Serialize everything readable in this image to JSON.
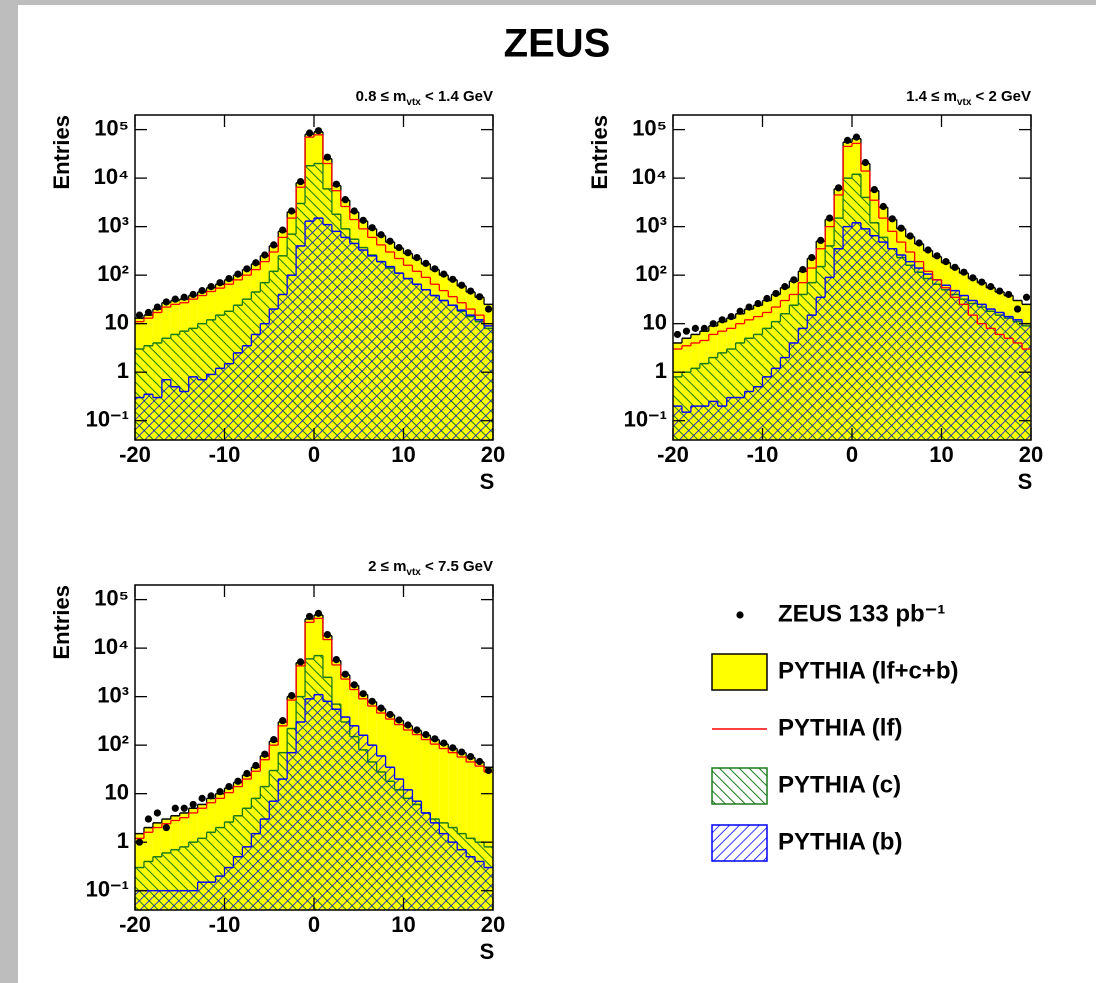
{
  "title": "ZEUS",
  "chart_data": [
    {
      "type": "histogram",
      "title": {
        "main": "0.8 ≤ m",
        "sub": "vtx",
        "rest": " < 1.4 GeV"
      },
      "xlabel": "S",
      "ylabel": "Entries",
      "log_y": true,
      "xlim": [
        -20,
        20
      ],
      "xticks": [
        -20,
        -10,
        0,
        10,
        20
      ],
      "ylim": [
        0.04,
        200000
      ],
      "yticks": [
        {
          "value": 0.1,
          "label": "10⁻¹"
        },
        1,
        10,
        {
          "value": 100,
          "label": "10²"
        },
        {
          "value": 1000,
          "label": "10³"
        },
        {
          "value": 10000,
          "label": "10⁴"
        },
        {
          "value": 100000,
          "label": "10⁵"
        }
      ],
      "bins": [
        -20,
        -19,
        -18,
        -17,
        -16,
        -15,
        -14,
        -13,
        -12,
        -11,
        -10,
        -9,
        -8,
        -7,
        -6,
        -5,
        -4,
        -3,
        -2,
        -1,
        0,
        1,
        2,
        3,
        4,
        5,
        6,
        7,
        8,
        9,
        10,
        11,
        12,
        13,
        14,
        15,
        16,
        17,
        18,
        19,
        20
      ],
      "series": [
        {
          "name": "ZEUS 133 pb⁻¹",
          "style": "points",
          "color": "#000000",
          "values": [
            15,
            17,
            22,
            28,
            32,
            35,
            40,
            48,
            58,
            70,
            85,
            105,
            135,
            180,
            260,
            420,
            850,
            2100,
            8500,
            85000,
            95000,
            27000,
            7500,
            3600,
            2100,
            1350,
            950,
            680,
            500,
            370,
            290,
            230,
            175,
            135,
            105,
            82,
            62,
            47,
            36,
            20
          ]
        },
        {
          "name": "PYTHIA (lf+c+b)",
          "style": "filled",
          "color": "#ffff00",
          "values": [
            13,
            15,
            20,
            27,
            30,
            32,
            38,
            45,
            55,
            65,
            80,
            100,
            130,
            170,
            250,
            400,
            800,
            2000,
            8000,
            80000,
            90000,
            25000,
            7000,
            3500,
            2000,
            1300,
            900,
            650,
            480,
            360,
            280,
            220,
            170,
            130,
            100,
            80,
            60,
            45,
            35,
            25
          ]
        },
        {
          "name": "PYTHIA (lf)",
          "style": "line",
          "color": "#ff0000",
          "values": [
            11,
            13,
            17,
            22,
            25,
            27,
            32,
            38,
            46,
            54,
            65,
            80,
            100,
            130,
            190,
            300,
            600,
            1500,
            6500,
            70000,
            78000,
            20000,
            5500,
            2600,
            1400,
            900,
            600,
            420,
            300,
            220,
            160,
            120,
            90,
            65,
            48,
            36,
            27,
            20,
            15,
            10
          ]
        },
        {
          "name": "PYTHIA (c)",
          "style": "hatch-down",
          "color": "#1a7a1a",
          "values": [
            3,
            3.5,
            4,
            5,
            6,
            7,
            8,
            10,
            12,
            15,
            18,
            24,
            32,
            45,
            70,
            120,
            250,
            700,
            3000,
            18000,
            20000,
            6000,
            1800,
            900,
            550,
            370,
            260,
            190,
            140,
            110,
            85,
            65,
            50,
            38,
            30,
            24,
            18,
            14,
            11,
            8
          ]
        },
        {
          "name": "PYTHIA (b)",
          "style": "hatch-up",
          "color": "#0000ff",
          "values": [
            0.3,
            0.35,
            0.3,
            0.7,
            0.5,
            0.4,
            0.8,
            0.7,
            0.9,
            1.2,
            1.5,
            2.5,
            3.5,
            6,
            10,
            20,
            40,
            100,
            400,
            1300,
            1500,
            1100,
            800,
            600,
            450,
            330,
            250,
            190,
            150,
            110,
            85,
            65,
            50,
            38,
            30,
            24,
            19,
            15,
            12,
            9
          ]
        }
      ]
    },
    {
      "type": "histogram",
      "title": {
        "main": "1.4 ≤ m",
        "sub": "vtx",
        "rest": " < 2 GeV"
      },
      "xlabel": "S",
      "ylabel": "Entries",
      "log_y": true,
      "xlim": [
        -20,
        20
      ],
      "xticks": [
        -20,
        -10,
        0,
        10,
        20
      ],
      "ylim": [
        0.04,
        200000
      ],
      "yticks": [
        {
          "value": 0.1,
          "label": "10⁻¹"
        },
        1,
        10,
        {
          "value": 100,
          "label": "10²"
        },
        {
          "value": 1000,
          "label": "10³"
        },
        {
          "value": 10000,
          "label": "10⁴"
        },
        {
          "value": 100000,
          "label": "10⁵"
        }
      ],
      "bins": [
        -20,
        -19,
        -18,
        -17,
        -16,
        -15,
        -14,
        -13,
        -12,
        -11,
        -10,
        -9,
        -8,
        -7,
        -6,
        -5,
        -4,
        -3,
        -2,
        -1,
        0,
        1,
        2,
        3,
        4,
        5,
        6,
        7,
        8,
        9,
        10,
        11,
        12,
        13,
        14,
        15,
        16,
        17,
        18,
        19,
        20
      ],
      "series": [
        {
          "name": "ZEUS 133 pb⁻¹",
          "style": "points",
          "color": "#000000",
          "values": [
            6,
            7,
            8,
            8,
            10,
            12,
            14,
            18,
            22,
            26,
            33,
            42,
            58,
            80,
            130,
            230,
            520,
            1500,
            6300,
            60000,
            70000,
            21000,
            5800,
            2600,
            1450,
            930,
            640,
            460,
            330,
            250,
            190,
            145,
            115,
            88,
            72,
            58,
            47,
            40,
            20,
            35
          ]
        },
        {
          "name": "PYTHIA (lf+c+b)",
          "style": "filled",
          "color": "#ffff00",
          "values": [
            4,
            5,
            6,
            7,
            9,
            11,
            13,
            16,
            20,
            24,
            30,
            40,
            55,
            75,
            120,
            220,
            500,
            1400,
            6000,
            55000,
            65000,
            20000,
            5500,
            2500,
            1400,
            900,
            620,
            440,
            320,
            240,
            180,
            140,
            110,
            85,
            70,
            55,
            45,
            38,
            30,
            25
          ]
        },
        {
          "name": "PYTHIA (lf)",
          "style": "line",
          "color": "#ff0000",
          "values": [
            3,
            3.5,
            4,
            4.5,
            6,
            7,
            8,
            10,
            12,
            14,
            17,
            22,
            30,
            40,
            70,
            140,
            350,
            1000,
            4500,
            45000,
            52000,
            14000,
            3500,
            1500,
            800,
            480,
            300,
            190,
            120,
            80,
            55,
            35,
            25,
            15,
            10,
            8,
            6,
            5,
            4,
            3
          ]
        },
        {
          "name": "PYTHIA (c)",
          "style": "hatch-down",
          "color": "#1a7a1a",
          "values": [
            0.8,
            1,
            1.2,
            1.5,
            2,
            2.5,
            3,
            4,
            5,
            6,
            8,
            11,
            16,
            24,
            40,
            70,
            150,
            400,
            1500,
            10000,
            12000,
            4000,
            1200,
            600,
            350,
            230,
            160,
            115,
            85,
            65,
            50,
            40,
            32,
            26,
            22,
            18,
            15,
            13,
            11,
            9
          ]
        },
        {
          "name": "PYTHIA (b)",
          "style": "hatch-up",
          "color": "#0000ff",
          "values": [
            0.2,
            0.15,
            0.2,
            0.2,
            0.25,
            0.2,
            0.3,
            0.3,
            0.4,
            0.5,
            0.8,
            1.2,
            2,
            4,
            8,
            15,
            35,
            90,
            350,
            1000,
            1200,
            900,
            650,
            480,
            350,
            260,
            190,
            140,
            105,
            80,
            62,
            48,
            38,
            30,
            25,
            20,
            17,
            14,
            12,
            10
          ]
        }
      ]
    },
    {
      "type": "histogram",
      "title": {
        "main": "2 ≤ m",
        "sub": "vtx",
        "rest": " < 7.5 GeV"
      },
      "xlabel": "S",
      "ylabel": "Entries",
      "log_y": true,
      "xlim": [
        -20,
        20
      ],
      "xticks": [
        -20,
        -10,
        0,
        10,
        20
      ],
      "ylim": [
        0.04,
        200000
      ],
      "yticks": [
        {
          "value": 0.1,
          "label": "10⁻¹"
        },
        1,
        10,
        {
          "value": 100,
          "label": "10²"
        },
        {
          "value": 1000,
          "label": "10³"
        },
        {
          "value": 10000,
          "label": "10⁴"
        },
        {
          "value": 100000,
          "label": "10⁵"
        }
      ],
      "bins": [
        -20,
        -19,
        -18,
        -17,
        -16,
        -15,
        -14,
        -13,
        -12,
        -11,
        -10,
        -9,
        -8,
        -7,
        -6,
        -5,
        -4,
        -3,
        -2,
        -1,
        0,
        1,
        2,
        3,
        4,
        5,
        6,
        7,
        8,
        9,
        10,
        11,
        12,
        13,
        14,
        15,
        16,
        17,
        18,
        19,
        20
      ],
      "series": [
        {
          "name": "ZEUS 133 pb⁻¹",
          "style": "points",
          "color": "#000000",
          "values": [
            1,
            3,
            4,
            2,
            5,
            5,
            6,
            8,
            9,
            11,
            14,
            18,
            26,
            38,
            65,
            130,
            320,
            1050,
            5200,
            45000,
            52000,
            19000,
            5800,
            2900,
            1750,
            1150,
            800,
            580,
            430,
            330,
            260,
            205,
            165,
            135,
            110,
            88,
            72,
            58,
            46,
            30
          ]
        },
        {
          "name": "PYTHIA (lf+c+b)",
          "style": "filled",
          "color": "#ffff00",
          "values": [
            1.5,
            2,
            2.5,
            3,
            3.5,
            4,
            5,
            6,
            8,
            10,
            13,
            17,
            24,
            35,
            60,
            120,
            300,
            1000,
            5000,
            40000,
            48000,
            18000,
            5500,
            2800,
            1700,
            1100,
            780,
            560,
            420,
            320,
            250,
            200,
            160,
            130,
            105,
            85,
            70,
            55,
            45,
            35
          ]
        },
        {
          "name": "PYTHIA (lf)",
          "style": "line",
          "color": "#ff0000",
          "values": [
            1.2,
            1.6,
            2,
            2.4,
            2.8,
            3.2,
            4,
            5,
            6.5,
            8,
            10.5,
            14,
            20,
            29,
            50,
            100,
            250,
            850,
            4300,
            34000,
            41000,
            15000,
            4500,
            2300,
            1400,
            900,
            640,
            460,
            345,
            265,
            205,
            165,
            130,
            105,
            85,
            70,
            57,
            45,
            37,
            28
          ]
        },
        {
          "name": "PYTHIA (c)",
          "style": "hatch-down",
          "color": "#1a7a1a",
          "values": [
            0.3,
            0.4,
            0.5,
            0.6,
            0.7,
            0.8,
            1,
            1.2,
            1.6,
            2,
            2.6,
            3.5,
            5,
            8,
            14,
            30,
            70,
            220,
            1000,
            6000,
            7000,
            2500,
            700,
            300,
            150,
            80,
            45,
            28,
            18,
            12,
            8,
            6,
            4,
            3,
            2.5,
            2,
            1.5,
            1.2,
            1,
            0.8
          ]
        },
        {
          "name": "PYTHIA (b)",
          "style": "hatch-up",
          "color": "#0000ff",
          "values": [
            0.1,
            0.1,
            0.1,
            0.1,
            0.1,
            0.1,
            0.1,
            0.15,
            0.15,
            0.2,
            0.3,
            0.5,
            0.8,
            1.5,
            3,
            7,
            20,
            70,
            300,
            900,
            1100,
            800,
            550,
            380,
            250,
            160,
            100,
            60,
            35,
            20,
            12,
            7,
            4,
            2.5,
            1.5,
            1,
            0.7,
            0.5,
            0.4,
            0.3
          ]
        }
      ]
    }
  ]
}
